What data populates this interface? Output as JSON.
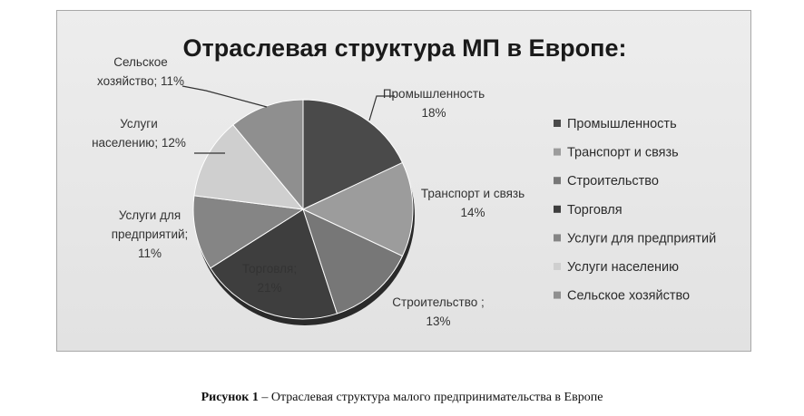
{
  "chart_data": {
    "type": "pie",
    "title": "Отраслевая структура МП в Европе:",
    "slices": [
      {
        "name": "Промышленность",
        "value": 18,
        "color": "#4a4a4a",
        "label_lines": [
          "Промышленность",
          "18%"
        ]
      },
      {
        "name": "Транспорт и связь",
        "value": 14,
        "color": "#9c9c9c",
        "label_lines": [
          "Транспорт и связь",
          "14%"
        ]
      },
      {
        "name": "Строительство",
        "value": 13,
        "color": "#777777",
        "label_lines": [
          "Строительство ;",
          "13%"
        ]
      },
      {
        "name": "Торговля",
        "value": 21,
        "color": "#3e3e3e",
        "label_lines": [
          "Торговля;",
          "21%"
        ]
      },
      {
        "name": "Услуги для предприятий",
        "value": 11,
        "color": "#858585",
        "label_lines": [
          "Услуги для",
          "предприятий;",
          "11%"
        ]
      },
      {
        "name": "Услуги населению",
        "value": 12,
        "color": "#cfcfcf",
        "label_lines": [
          "Услуги",
          "населению; 12%"
        ]
      },
      {
        "name": "Сельское хозяйство",
        "value": 11,
        "color": "#8f8f8f",
        "label_lines": [
          "Сельское",
          "хозяйство; 11%"
        ]
      }
    ],
    "legend": {
      "position": "right",
      "items": [
        "Промышленность",
        "Транспорт и связь",
        "Строительство",
        "Торговля",
        "Услуги для предприятий",
        "Услуги населению",
        "Сельское хозяйство"
      ]
    }
  },
  "caption": {
    "label": "Рисунок 1",
    "text": " – Отраслевая структура малого предпринимательства в Европе"
  }
}
